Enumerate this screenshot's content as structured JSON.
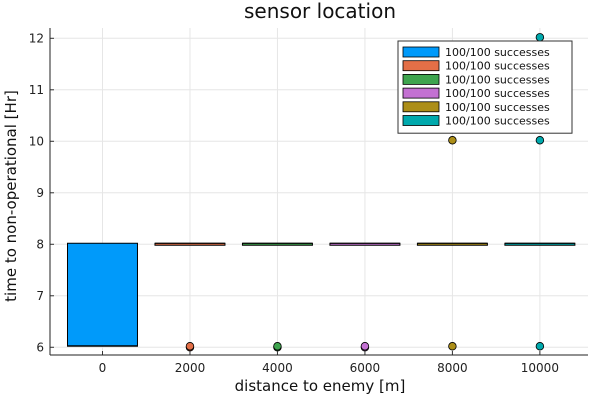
{
  "chart_data": {
    "type": "boxplot",
    "title": "sensor location",
    "xlabel": "distance to enemy [m]",
    "ylabel": "time to non-operational [Hr]",
    "xlim": [
      -1200,
      11100
    ],
    "ylim": [
      5.85,
      12.2
    ],
    "xticks": [
      "0",
      "2000",
      "4000",
      "6000",
      "8000",
      "10000"
    ],
    "yticks": [
      "6",
      "7",
      "8",
      "9",
      "10",
      "11",
      "12"
    ],
    "grid": true,
    "legend_position": "top-right",
    "series": [
      {
        "name": "100/100 successes",
        "x": 0,
        "color": "#009AFA",
        "q1": 6.02,
        "median": 6.03,
        "q3": 8.02,
        "outliers": []
      },
      {
        "name": "100/100 successes",
        "x": 2000,
        "color": "#E36F47",
        "q1": 8.02,
        "median": 8.02,
        "q3": 8.02,
        "outliers": [
          6.0,
          6.02
        ]
      },
      {
        "name": "100/100 successes",
        "x": 4000,
        "color": "#3EA44E",
        "q1": 8.02,
        "median": 8.02,
        "q3": 8.02,
        "outliers": [
          6.0,
          6.02
        ]
      },
      {
        "name": "100/100 successes",
        "x": 6000,
        "color": "#C371D2",
        "q1": 8.02,
        "median": 8.02,
        "q3": 8.02,
        "outliers": [
          6.0,
          6.02
        ]
      },
      {
        "name": "100/100 successes",
        "x": 8000,
        "color": "#AC8E18",
        "q1": 8.02,
        "median": 8.02,
        "q3": 8.02,
        "outliers": [
          6.02,
          10.02
        ]
      },
      {
        "name": "100/100 successes",
        "x": 10000,
        "color": "#00A9AD",
        "q1": 8.02,
        "median": 8.02,
        "q3": 8.02,
        "outliers": [
          6.02,
          10.02,
          12.02
        ]
      }
    ]
  }
}
